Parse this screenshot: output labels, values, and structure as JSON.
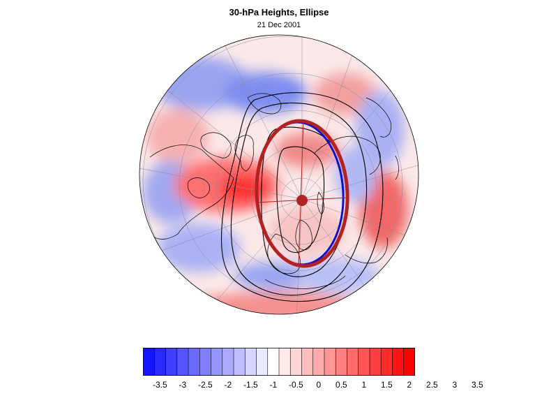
{
  "title": "30-hPa Heights, Ellipse",
  "subtitle": "21 Dec 2001",
  "map": {
    "projection": "north-polar-orthographic",
    "field": "30-hPa height anomaly",
    "layers": [
      "anomaly-fill",
      "coastlines",
      "graticule",
      "height-contours",
      "vortex-ellipse",
      "ellipse-axes"
    ]
  },
  "colors": {
    "ellipse_outer": "#b22222",
    "ellipse_inner": "#1010c8",
    "contour": "#000000",
    "center_marker": "#b22222"
  },
  "colorbar": {
    "colors": [
      "#1515ff",
      "#2a2aff",
      "#3f3fff",
      "#5555ff",
      "#6a6aff",
      "#8080ff",
      "#9595ff",
      "#aaaaff",
      "#bfbfff",
      "#d5d5ff",
      "#eaeaff",
      "#ffffff",
      "#ffeaea",
      "#ffd5d5",
      "#ffbfbf",
      "#ffaaaa",
      "#ff9595",
      "#ff8080",
      "#ff6a6a",
      "#ff5555",
      "#ff3f3f",
      "#ff2a2a",
      "#ff1515",
      "#ff0000"
    ],
    "labels": [
      "-3.5",
      "-3",
      "-2.5",
      "-2",
      "-1.5",
      "-1",
      "-0.5",
      "0",
      "0.5",
      "1",
      "1.5",
      "2",
      "2.5",
      "3",
      "3.5"
    ]
  }
}
